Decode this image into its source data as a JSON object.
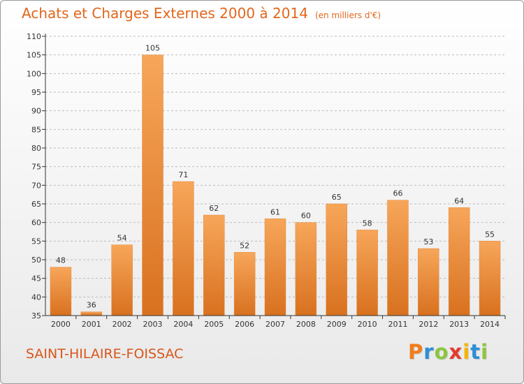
{
  "header": {
    "title": "Achats et Charges Externes 2000 à 2014",
    "unit": "(en milliers d'€)"
  },
  "footer": {
    "commune": "SAINT-HILAIRE-FOISSAC",
    "logo_letters": [
      "P",
      "r",
      "o",
      "x",
      "i",
      "t",
      "i"
    ],
    "logo_colors": [
      "#f07d1a",
      "#2b8fd6",
      "#8cc63f",
      "#e23a2e",
      "#f5b400",
      "#2b8fd6",
      "#8cc63f"
    ]
  },
  "chart_data": {
    "type": "bar",
    "categories": [
      "2000",
      "2001",
      "2002",
      "2003",
      "2004",
      "2005",
      "2006",
      "2007",
      "2008",
      "2009",
      "2010",
      "2011",
      "2012",
      "2013",
      "2014"
    ],
    "values": [
      48,
      36,
      54,
      105,
      71,
      62,
      52,
      61,
      60,
      65,
      58,
      66,
      53,
      64,
      55
    ],
    "ylim": [
      35,
      110
    ],
    "yticks": [
      35,
      40,
      45,
      50,
      55,
      60,
      65,
      70,
      75,
      80,
      85,
      90,
      95,
      100,
      105,
      110
    ],
    "grid": "horizontal-dashed",
    "colors": {
      "bar_light": "#f7a65a",
      "bar_dark": "#d8711f",
      "grid": "#bbbbbb",
      "axis": "#333333"
    }
  }
}
